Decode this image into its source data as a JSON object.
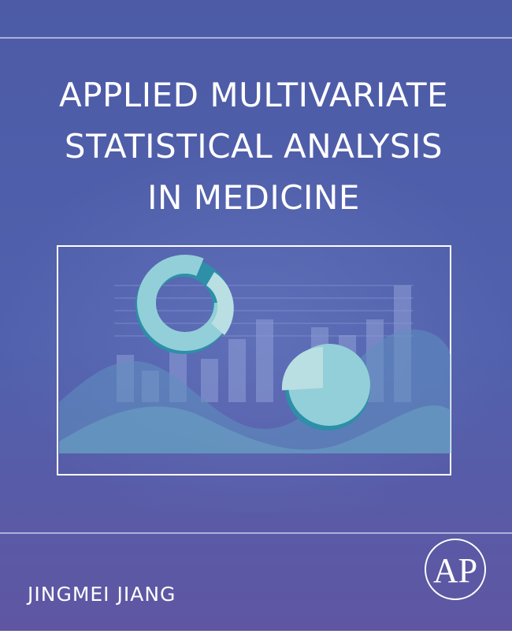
{
  "cover": {
    "title_lines": [
      "APPLIED MULTIVARIATE",
      "STATISTICAL ANALYSIS",
      "IN MEDICINE"
    ],
    "author": "JINGMEI JIANG",
    "publisher_logo": "AP"
  }
}
